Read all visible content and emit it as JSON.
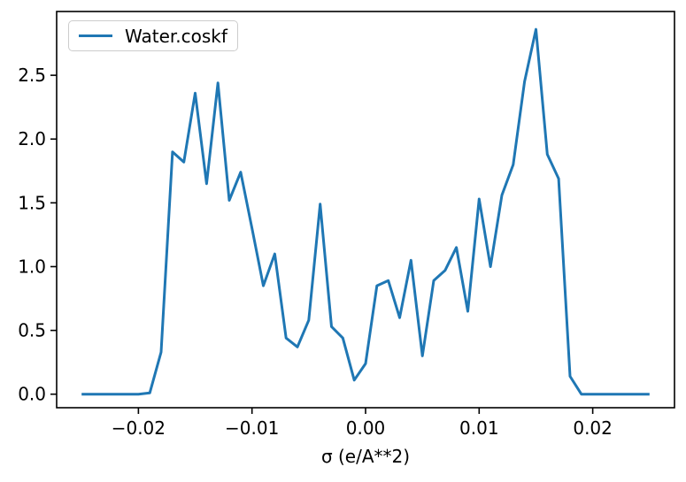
{
  "chart_data": {
    "type": "line",
    "title": "",
    "xlabel": "σ (e/A**2)",
    "ylabel": "",
    "grid": false,
    "background": "#ffffff",
    "axis_color": "#000000",
    "xlim": [
      -0.0272,
      0.0272
    ],
    "ylim": [
      -0.106,
      3.0
    ],
    "xticks": {
      "values": [
        -0.02,
        -0.01,
        0.0,
        0.01,
        0.02
      ],
      "labels": [
        "−0.02",
        "−0.01",
        "0.00",
        "0.01",
        "0.02"
      ]
    },
    "yticks": {
      "values": [
        0.0,
        0.5,
        1.0,
        1.5,
        2.0,
        2.5
      ],
      "labels": [
        "0.0",
        "0.5",
        "1.0",
        "1.5",
        "2.0",
        "2.5"
      ]
    },
    "legend": {
      "position": "upper left",
      "entries": [
        "Water.coskf"
      ]
    },
    "series": [
      {
        "name": "Water.coskf",
        "color": "#1f77b4",
        "x": [
          -0.025,
          -0.024,
          -0.023,
          -0.022,
          -0.021,
          -0.02,
          -0.019,
          -0.018,
          -0.017,
          -0.016,
          -0.015,
          -0.014,
          -0.013,
          -0.012,
          -0.011,
          -0.01,
          -0.009,
          -0.008,
          -0.007,
          -0.006,
          -0.005,
          -0.004,
          -0.003,
          -0.002,
          -0.001,
          0.0,
          0.001,
          0.002,
          0.003,
          0.004,
          0.005,
          0.006,
          0.007,
          0.008,
          0.009,
          0.01,
          0.011,
          0.012,
          0.013,
          0.014,
          0.015,
          0.016,
          0.017,
          0.018,
          0.019,
          0.02,
          0.021,
          0.022,
          0.023,
          0.024,
          0.025
        ],
        "y": [
          0,
          0,
          0,
          0,
          0,
          0,
          0.01,
          0.33,
          1.9,
          1.82,
          2.36,
          1.65,
          2.44,
          1.52,
          1.74,
          1.3,
          0.85,
          1.1,
          0.44,
          0.37,
          0.58,
          1.49,
          0.53,
          0.44,
          0.11,
          0.24,
          0.85,
          0.89,
          0.6,
          1.05,
          0.3,
          0.89,
          0.97,
          1.15,
          0.65,
          1.53,
          1.0,
          1.56,
          1.8,
          2.45,
          2.86,
          1.88,
          1.69,
          0.14,
          0,
          0,
          0,
          0,
          0,
          0,
          0
        ]
      }
    ]
  }
}
